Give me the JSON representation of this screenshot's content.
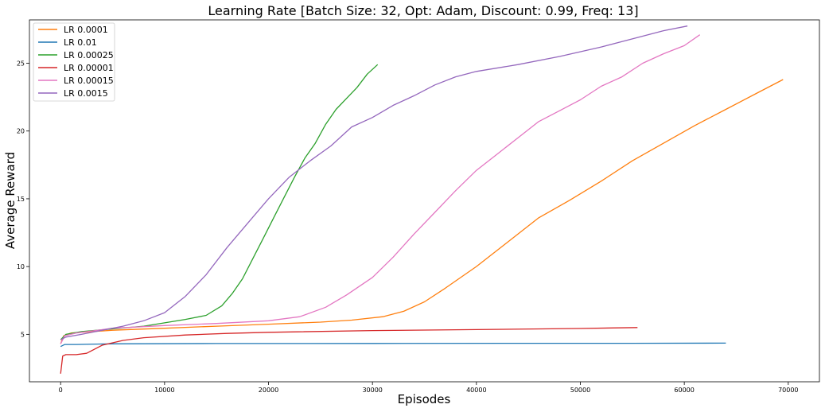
{
  "chart_data": {
    "type": "line",
    "title": "Learning Rate [Batch Size: 32, Opt: Adam, Discount: 0.99, Freq: 13]",
    "xlabel": "Episodes",
    "ylabel": "Average Reward",
    "xlim": [
      -3000,
      73000
    ],
    "ylim": [
      1.5,
      28.2
    ],
    "xticks": [
      0,
      10000,
      20000,
      30000,
      40000,
      50000,
      60000,
      70000
    ],
    "yticks": [
      5,
      10,
      15,
      20,
      25
    ],
    "grid": false,
    "legend_position": "top-left",
    "series": [
      {
        "name": "LR 0.0001",
        "color": "#ff7f0e",
        "points": [
          [
            0,
            4.3
          ],
          [
            300,
            4.9
          ],
          [
            1000,
            5.1
          ],
          [
            5000,
            5.3
          ],
          [
            10000,
            5.45
          ],
          [
            15000,
            5.6
          ],
          [
            20000,
            5.75
          ],
          [
            25000,
            5.9
          ],
          [
            28000,
            6.05
          ],
          [
            31000,
            6.3
          ],
          [
            33000,
            6.7
          ],
          [
            35000,
            7.4
          ],
          [
            37000,
            8.4
          ],
          [
            40000,
            10.0
          ],
          [
            43000,
            11.8
          ],
          [
            46000,
            13.6
          ],
          [
            49000,
            14.9
          ],
          [
            52000,
            16.3
          ],
          [
            55000,
            17.8
          ],
          [
            58000,
            19.1
          ],
          [
            61000,
            20.4
          ],
          [
            64000,
            21.6
          ],
          [
            67000,
            22.8
          ],
          [
            69500,
            23.8
          ]
        ]
      },
      {
        "name": "LR 0.01",
        "color": "#1f77b4",
        "points": [
          [
            0,
            4.1
          ],
          [
            400,
            4.25
          ],
          [
            1500,
            4.25
          ],
          [
            5000,
            4.3
          ],
          [
            15000,
            4.32
          ],
          [
            30000,
            4.33
          ],
          [
            45000,
            4.34
          ],
          [
            55000,
            4.34
          ],
          [
            64000,
            4.35
          ]
        ]
      },
      {
        "name": "LR 0.00025",
        "color": "#2ca02c",
        "points": [
          [
            0,
            4.6
          ],
          [
            500,
            5.0
          ],
          [
            2000,
            5.2
          ],
          [
            5000,
            5.4
          ],
          [
            8000,
            5.6
          ],
          [
            10000,
            5.85
          ],
          [
            12000,
            6.1
          ],
          [
            14000,
            6.4
          ],
          [
            15500,
            7.1
          ],
          [
            16500,
            8.0
          ],
          [
            17500,
            9.1
          ],
          [
            18500,
            10.6
          ],
          [
            19500,
            12.1
          ],
          [
            20500,
            13.6
          ],
          [
            21500,
            15.1
          ],
          [
            22500,
            16.6
          ],
          [
            23500,
            18.0
          ],
          [
            24500,
            19.1
          ],
          [
            25500,
            20.5
          ],
          [
            26500,
            21.6
          ],
          [
            27500,
            22.4
          ],
          [
            28500,
            23.2
          ],
          [
            29500,
            24.2
          ],
          [
            30500,
            24.9
          ]
        ]
      },
      {
        "name": "LR 0.00001",
        "color": "#d62728",
        "points": [
          [
            0,
            2.1
          ],
          [
            200,
            3.4
          ],
          [
            500,
            3.5
          ],
          [
            1500,
            3.5
          ],
          [
            2500,
            3.6
          ],
          [
            4000,
            4.2
          ],
          [
            6000,
            4.55
          ],
          [
            8000,
            4.75
          ],
          [
            12000,
            4.95
          ],
          [
            16000,
            5.07
          ],
          [
            20000,
            5.15
          ],
          [
            30000,
            5.28
          ],
          [
            40000,
            5.35
          ],
          [
            50000,
            5.43
          ],
          [
            55500,
            5.5
          ]
        ]
      },
      {
        "name": "LR 0.00015",
        "color": "#e377c2",
        "points": [
          [
            0,
            4.3
          ],
          [
            400,
            4.9
          ],
          [
            1500,
            5.1
          ],
          [
            5000,
            5.45
          ],
          [
            10000,
            5.65
          ],
          [
            15000,
            5.8
          ],
          [
            20000,
            6.0
          ],
          [
            23000,
            6.3
          ],
          [
            25500,
            7.0
          ],
          [
            27500,
            7.9
          ],
          [
            30000,
            9.2
          ],
          [
            32000,
            10.7
          ],
          [
            34000,
            12.4
          ],
          [
            36000,
            14.0
          ],
          [
            38000,
            15.6
          ],
          [
            40000,
            17.1
          ],
          [
            42000,
            18.3
          ],
          [
            44000,
            19.5
          ],
          [
            46000,
            20.7
          ],
          [
            48000,
            21.5
          ],
          [
            50000,
            22.3
          ],
          [
            52000,
            23.3
          ],
          [
            54000,
            24.0
          ],
          [
            56000,
            25.0
          ],
          [
            58000,
            25.7
          ],
          [
            60000,
            26.3
          ],
          [
            61500,
            27.1
          ]
        ]
      },
      {
        "name": "LR 0.0015",
        "color": "#9467bd",
        "points": [
          [
            0,
            4.6
          ],
          [
            500,
            4.8
          ],
          [
            2000,
            5.0
          ],
          [
            4000,
            5.3
          ],
          [
            6000,
            5.6
          ],
          [
            8000,
            6.0
          ],
          [
            10000,
            6.6
          ],
          [
            12000,
            7.8
          ],
          [
            14000,
            9.4
          ],
          [
            16000,
            11.4
          ],
          [
            18000,
            13.2
          ],
          [
            20000,
            15.0
          ],
          [
            22000,
            16.6
          ],
          [
            24000,
            17.8
          ],
          [
            26000,
            18.9
          ],
          [
            28000,
            20.3
          ],
          [
            30000,
            21.0
          ],
          [
            32000,
            21.9
          ],
          [
            34000,
            22.6
          ],
          [
            36000,
            23.4
          ],
          [
            38000,
            24.0
          ],
          [
            40000,
            24.4
          ],
          [
            44000,
            24.9
          ],
          [
            48000,
            25.5
          ],
          [
            52000,
            26.2
          ],
          [
            55000,
            26.8
          ],
          [
            58000,
            27.4
          ],
          [
            60300,
            27.75
          ]
        ]
      }
    ]
  }
}
